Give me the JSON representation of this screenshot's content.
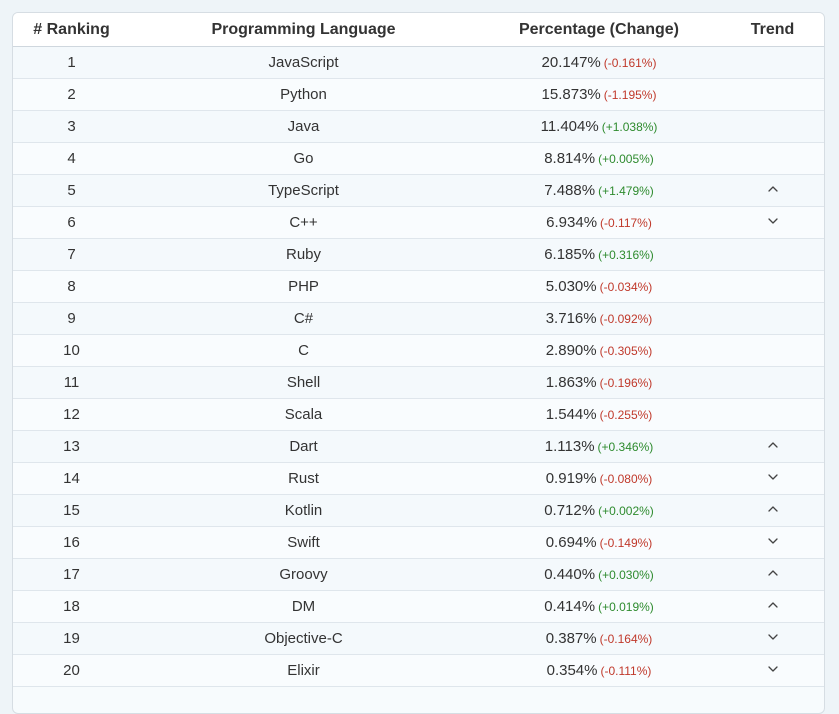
{
  "columns": {
    "rank": "# Ranking",
    "language": "Programming Language",
    "percentage": "Percentage (Change)",
    "trend": "Trend"
  },
  "rows": [
    {
      "rank": "1",
      "language": "JavaScript",
      "percentage": "20.147%",
      "change": "(-0.161%)",
      "dir": "neg",
      "trend": ""
    },
    {
      "rank": "2",
      "language": "Python",
      "percentage": "15.873%",
      "change": "(-1.195%)",
      "dir": "neg",
      "trend": ""
    },
    {
      "rank": "3",
      "language": "Java",
      "percentage": "11.404%",
      "change": "(+1.038%)",
      "dir": "pos",
      "trend": ""
    },
    {
      "rank": "4",
      "language": "Go",
      "percentage": "8.814%",
      "change": "(+0.005%)",
      "dir": "pos",
      "trend": ""
    },
    {
      "rank": "5",
      "language": "TypeScript",
      "percentage": "7.488%",
      "change": "(+1.479%)",
      "dir": "pos",
      "trend": "up"
    },
    {
      "rank": "6",
      "language": "C++",
      "percentage": "6.934%",
      "change": "(-0.117%)",
      "dir": "neg",
      "trend": "down"
    },
    {
      "rank": "7",
      "language": "Ruby",
      "percentage": "6.185%",
      "change": "(+0.316%)",
      "dir": "pos",
      "trend": ""
    },
    {
      "rank": "8",
      "language": "PHP",
      "percentage": "5.030%",
      "change": "(-0.034%)",
      "dir": "neg",
      "trend": ""
    },
    {
      "rank": "9",
      "language": "C#",
      "percentage": "3.716%",
      "change": "(-0.092%)",
      "dir": "neg",
      "trend": ""
    },
    {
      "rank": "10",
      "language": "C",
      "percentage": "2.890%",
      "change": "(-0.305%)",
      "dir": "neg",
      "trend": ""
    },
    {
      "rank": "11",
      "language": "Shell",
      "percentage": "1.863%",
      "change": "(-0.196%)",
      "dir": "neg",
      "trend": ""
    },
    {
      "rank": "12",
      "language": "Scala",
      "percentage": "1.544%",
      "change": "(-0.255%)",
      "dir": "neg",
      "trend": ""
    },
    {
      "rank": "13",
      "language": "Dart",
      "percentage": "1.113%",
      "change": "(+0.346%)",
      "dir": "pos",
      "trend": "up"
    },
    {
      "rank": "14",
      "language": "Rust",
      "percentage": "0.919%",
      "change": "(-0.080%)",
      "dir": "neg",
      "trend": "down"
    },
    {
      "rank": "15",
      "language": "Kotlin",
      "percentage": "0.712%",
      "change": "(+0.002%)",
      "dir": "pos",
      "trend": "up"
    },
    {
      "rank": "16",
      "language": "Swift",
      "percentage": "0.694%",
      "change": "(-0.149%)",
      "dir": "neg",
      "trend": "down"
    },
    {
      "rank": "17",
      "language": "Groovy",
      "percentage": "0.440%",
      "change": "(+0.030%)",
      "dir": "pos",
      "trend": "up"
    },
    {
      "rank": "18",
      "language": "DM",
      "percentage": "0.414%",
      "change": "(+0.019%)",
      "dir": "pos",
      "trend": "up"
    },
    {
      "rank": "19",
      "language": "Objective-C",
      "percentage": "0.387%",
      "change": "(-0.164%)",
      "dir": "neg",
      "trend": "down"
    },
    {
      "rank": "20",
      "language": "Elixir",
      "percentage": "0.354%",
      "change": "(-0.111%)",
      "dir": "neg",
      "trend": "down"
    }
  ],
  "icons": {
    "up": "chevron-up-icon",
    "down": "chevron-down-icon"
  },
  "colors": {
    "negative": "#c0392b",
    "positive": "#2e8b2e"
  }
}
